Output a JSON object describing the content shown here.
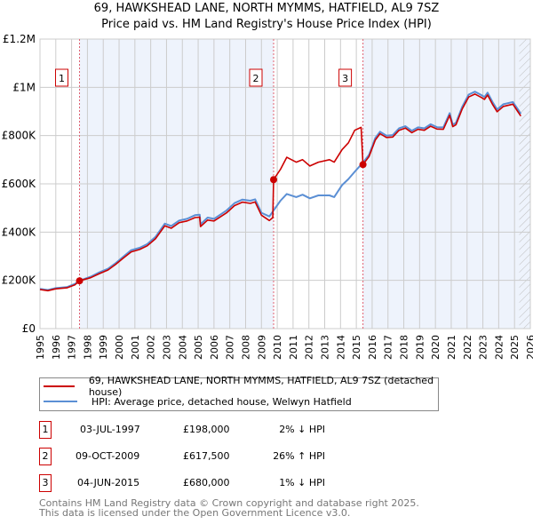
{
  "title": {
    "line1": "69, HAWKSHEAD LANE, NORTH MYMMS, HATFIELD, AL9 7SZ",
    "line2": "Price paid vs. HM Land Registry's House Price Index (HPI)"
  },
  "legend": {
    "property": "69, HAWKSHEAD LANE, NORTH MYMMS, HATFIELD, AL9 7SZ (detached house)",
    "hpi": "HPI: Average price, detached house, Welwyn Hatfield"
  },
  "sales": [
    {
      "num": "1",
      "date": "03-JUL-1997",
      "price": "£198,000",
      "hpi": "2% ↓ HPI",
      "year": 1997.5,
      "value": 198000
    },
    {
      "num": "2",
      "date": "09-OCT-2009",
      "price": "£617,500",
      "hpi": "26% ↑ HPI",
      "year": 2009.77,
      "value": 617500
    },
    {
      "num": "3",
      "date": "04-JUN-2015",
      "price": "£680,000",
      "hpi": "1% ↓ HPI",
      "year": 2015.42,
      "value": 680000
    }
  ],
  "footer": {
    "line1": "Contains HM Land Registry data © Crown copyright and database right 2025.",
    "line2": "This data is licensed under the Open Government Licence v3.0."
  },
  "colors": {
    "property": "#cc0000",
    "hpi": "#5b8fd4",
    "shade": "#eef3fc",
    "grid": "#cccccc"
  },
  "chart_data": {
    "type": "line",
    "xlim": [
      1995,
      2026
    ],
    "ylim": [
      0,
      1200000
    ],
    "y_ticks": [
      0,
      200000,
      400000,
      600000,
      800000,
      1000000,
      1200000
    ],
    "y_tick_labels": [
      "£0",
      "£200K",
      "£400K",
      "£600K",
      "£800K",
      "£1M",
      "£1.2M"
    ],
    "x_ticks": [
      1995,
      1996,
      1997,
      1998,
      1999,
      2000,
      2001,
      2002,
      2003,
      2004,
      2005,
      2006,
      2007,
      2008,
      2009,
      2010,
      2011,
      2012,
      2013,
      2014,
      2015,
      2016,
      2017,
      2018,
      2019,
      2020,
      2021,
      2022,
      2023,
      2024,
      2025,
      2026
    ],
    "series": [
      {
        "name": "hpi",
        "points": [
          [
            1995.0,
            165000
          ],
          [
            1995.5,
            160000
          ],
          [
            1996.0,
            168000
          ],
          [
            1996.7,
            172000
          ],
          [
            1997.2,
            185000
          ],
          [
            1997.55,
            200000
          ],
          [
            1998.2,
            215000
          ],
          [
            1998.75,
            233000
          ],
          [
            1999.3,
            248000
          ],
          [
            1999.76,
            270000
          ],
          [
            2000.3,
            300000
          ],
          [
            2000.77,
            325000
          ],
          [
            2001.3,
            335000
          ],
          [
            2001.78,
            350000
          ],
          [
            2002.3,
            380000
          ],
          [
            2002.89,
            435000
          ],
          [
            2003.3,
            425000
          ],
          [
            2003.8,
            448000
          ],
          [
            2004.3,
            455000
          ],
          [
            2004.8,
            470000
          ],
          [
            2005.1,
            472000
          ],
          [
            2005.15,
            432000
          ],
          [
            2005.6,
            460000
          ],
          [
            2006.0,
            455000
          ],
          [
            2006.8,
            490000
          ],
          [
            2007.3,
            520000
          ],
          [
            2007.8,
            535000
          ],
          [
            2008.3,
            530000
          ],
          [
            2008.6,
            536000
          ],
          [
            2009.0,
            480000
          ],
          [
            2009.5,
            465000
          ],
          [
            2009.77,
            490000
          ],
          [
            2010.2,
            530000
          ],
          [
            2010.6,
            558000
          ],
          [
            2011.2,
            545000
          ],
          [
            2011.6,
            555000
          ],
          [
            2012.06,
            540000
          ],
          [
            2012.6,
            552000
          ],
          [
            2013.3,
            552000
          ],
          [
            2013.6,
            545000
          ],
          [
            2014.1,
            595000
          ],
          [
            2014.5,
            620000
          ],
          [
            2014.9,
            650000
          ],
          [
            2015.42,
            688000
          ],
          [
            2015.8,
            720000
          ],
          [
            2016.2,
            790000
          ],
          [
            2016.5,
            816000
          ],
          [
            2016.9,
            800000
          ],
          [
            2017.3,
            802000
          ],
          [
            2017.7,
            830000
          ],
          [
            2018.1,
            839000
          ],
          [
            2018.5,
            820000
          ],
          [
            2018.9,
            834000
          ],
          [
            2019.3,
            830000
          ],
          [
            2019.7,
            847000
          ],
          [
            2020.1,
            835000
          ],
          [
            2020.5,
            834000
          ],
          [
            2020.9,
            893000
          ],
          [
            2021.1,
            845000
          ],
          [
            2021.3,
            853000
          ],
          [
            2021.7,
            920000
          ],
          [
            2022.1,
            970000
          ],
          [
            2022.5,
            982000
          ],
          [
            2022.9,
            968000
          ],
          [
            2023.1,
            960000
          ],
          [
            2023.3,
            978000
          ],
          [
            2023.6,
            940000
          ],
          [
            2023.9,
            908000
          ],
          [
            2024.3,
            930000
          ],
          [
            2024.9,
            939000
          ],
          [
            2025.2,
            910000
          ],
          [
            2025.4,
            890000
          ]
        ]
      },
      {
        "name": "property",
        "points": [
          [
            1995.0,
            162000
          ],
          [
            1995.5,
            157000
          ],
          [
            1996.0,
            165000
          ],
          [
            1996.7,
            169000
          ],
          [
            1997.2,
            181000
          ],
          [
            1997.5,
            198000
          ],
          [
            1998.2,
            211000
          ],
          [
            1998.75,
            228000
          ],
          [
            1999.3,
            243000
          ],
          [
            1999.76,
            265000
          ],
          [
            2000.3,
            294000
          ],
          [
            2000.77,
            318000
          ],
          [
            2001.3,
            328000
          ],
          [
            2001.78,
            343000
          ],
          [
            2002.3,
            372000
          ],
          [
            2002.89,
            426000
          ],
          [
            2003.3,
            416000
          ],
          [
            2003.8,
            439000
          ],
          [
            2004.3,
            446000
          ],
          [
            2004.8,
            460000
          ],
          [
            2005.1,
            462000
          ],
          [
            2005.15,
            423000
          ],
          [
            2005.6,
            450000
          ],
          [
            2006.0,
            446000
          ],
          [
            2006.8,
            480000
          ],
          [
            2007.3,
            510000
          ],
          [
            2007.8,
            524000
          ],
          [
            2008.3,
            519000
          ],
          [
            2008.6,
            525000
          ],
          [
            2009.0,
            470000
          ],
          [
            2009.5,
            448000
          ],
          [
            2009.72,
            460000
          ],
          [
            2009.77,
            617500
          ],
          [
            2010.2,
            660000
          ],
          [
            2010.6,
            710000
          ],
          [
            2011.2,
            690000
          ],
          [
            2011.6,
            700000
          ],
          [
            2012.06,
            674000
          ],
          [
            2012.6,
            690000
          ],
          [
            2013.3,
            700000
          ],
          [
            2013.6,
            690000
          ],
          [
            2014.1,
            742000
          ],
          [
            2014.5,
            770000
          ],
          [
            2014.9,
            822000
          ],
          [
            2015.3,
            834000
          ],
          [
            2015.42,
            680000
          ],
          [
            2015.8,
            713000
          ],
          [
            2016.2,
            782000
          ],
          [
            2016.5,
            808000
          ],
          [
            2016.9,
            792000
          ],
          [
            2017.3,
            794000
          ],
          [
            2017.7,
            822000
          ],
          [
            2018.1,
            831000
          ],
          [
            2018.5,
            812000
          ],
          [
            2018.9,
            826000
          ],
          [
            2019.3,
            822000
          ],
          [
            2019.7,
            839000
          ],
          [
            2020.1,
            827000
          ],
          [
            2020.5,
            826000
          ],
          [
            2020.9,
            884000
          ],
          [
            2021.1,
            837000
          ],
          [
            2021.3,
            845000
          ],
          [
            2021.7,
            911000
          ],
          [
            2022.1,
            960000
          ],
          [
            2022.5,
            972000
          ],
          [
            2022.9,
            958000
          ],
          [
            2023.1,
            950000
          ],
          [
            2023.3,
            968000
          ],
          [
            2023.6,
            930000
          ],
          [
            2023.9,
            899000
          ],
          [
            2024.3,
            921000
          ],
          [
            2024.9,
            930000
          ],
          [
            2025.2,
            900000
          ],
          [
            2025.4,
            881000
          ]
        ]
      }
    ],
    "forecast_from": 2025.3
  }
}
